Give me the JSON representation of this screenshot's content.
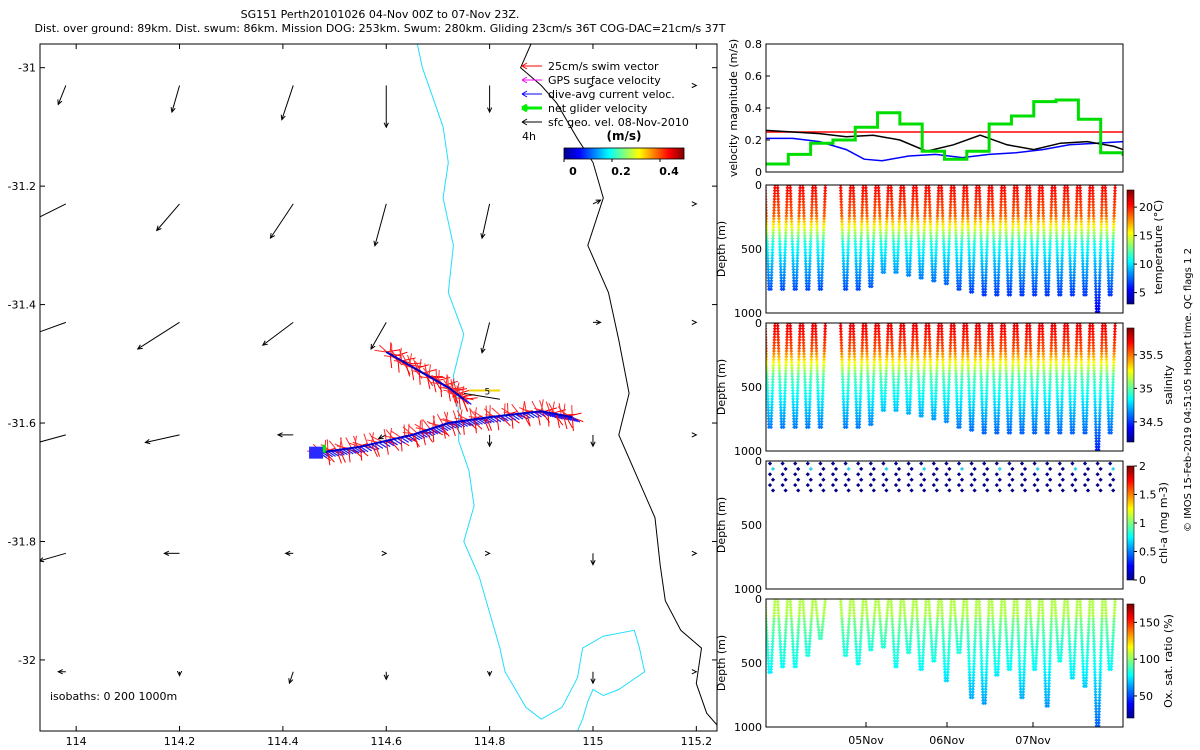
{
  "title": {
    "line1": "SG151 Perth20101026 04-Nov 00Z to 07-Nov 23Z.",
    "line2": "Dist. over ground: 89km. Dist. swum: 86km. Mission DOG: 253km. Swum: 280km. Gliding 23cm/s 36T COG-DAC=21cm/s 37T"
  },
  "chart_data": [
    {
      "type": "map",
      "name": "glider track map",
      "xlim": [
        113.93,
        115.24
      ],
      "ylim": [
        -32.12,
        -30.96
      ],
      "xticks": [
        114,
        114.2,
        114.4,
        114.6,
        114.8,
        115,
        115.2
      ],
      "xtick_labels": [
        "114",
        "114.2",
        "114.4",
        "114.6",
        "114.8",
        "115",
        "115.2"
      ],
      "yticks": [
        -31,
        -31.2,
        -31.4,
        -31.6,
        -31.8,
        -32
      ],
      "ytick_labels": [
        "-31",
        "-31.2",
        "-31.4",
        "-31.6",
        "-31.8",
        "-32"
      ],
      "legend": [
        {
          "label": "25cm/s swim vector",
          "color": "#ff0000"
        },
        {
          "label": "GPS surface velocity",
          "color": "#ff00ff"
        },
        {
          "label": "dive-avg current veloc.",
          "color": "#0000ff"
        },
        {
          "label": "net glider velocity",
          "color": "#00ee00"
        },
        {
          "label": "sfc geo. vel. 08-Nov-2010",
          "color": "#000000"
        }
      ],
      "legend_extra": "4h",
      "colorbar": {
        "label": "(m/s)",
        "tick_labels": [
          "0",
          "0.2",
          "0.4"
        ],
        "range": [
          0,
          0.5
        ]
      },
      "isobath_note": "isobaths: 0   200  1000m",
      "track_marker": "5",
      "track_west": {
        "lon": [
          114.47,
          114.55,
          114.65,
          114.72,
          114.8,
          114.9,
          114.96
        ],
        "lat": [
          -31.65,
          -31.64,
          -31.62,
          -31.6,
          -31.59,
          -31.58,
          -31.59
        ]
      },
      "track_north": {
        "lon": [
          114.6,
          114.66,
          114.72,
          114.75
        ],
        "lat": [
          -31.48,
          -31.51,
          -31.54,
          -31.56
        ]
      },
      "track_east": {
        "lon": [
          114.75,
          114.82
        ],
        "lat": [
          -31.55,
          -31.56
        ]
      },
      "coastline": {
        "lon": [
          114.88,
          114.86,
          114.9,
          114.93,
          114.97,
          115.0,
          115.02,
          114.99,
          115.03,
          115.05,
          115.07,
          115.05,
          115.09,
          115.12,
          115.13,
          115.14,
          115.17,
          115.21,
          115.2,
          115.22,
          115.25
        ],
        "lat": [
          -30.96,
          -31.0,
          -31.03,
          -31.06,
          -31.12,
          -31.16,
          -31.22,
          -31.3,
          -31.38,
          -31.46,
          -31.55,
          -31.62,
          -31.7,
          -31.76,
          -31.84,
          -31.9,
          -31.95,
          -31.98,
          -32.04,
          -32.09,
          -32.12
        ]
      },
      "isobath_200": {
        "lon": [
          114.66,
          114.67,
          114.69,
          114.71,
          114.72,
          114.71,
          114.73,
          114.72,
          114.75,
          114.73,
          114.74,
          114.74,
          114.76,
          114.77,
          114.75,
          114.78,
          114.8,
          114.82,
          114.83,
          114.85,
          114.87,
          114.9,
          114.94,
          114.97,
          114.98,
          115.02,
          115.08,
          115.09,
          115.1,
          115.05,
          115.02,
          115.0,
          114.99,
          114.98,
          114.97
        ],
        "lat": [
          -30.96,
          -31.0,
          -31.05,
          -31.1,
          -31.16,
          -31.22,
          -31.3,
          -31.38,
          -31.45,
          -31.52,
          -31.58,
          -31.63,
          -31.68,
          -31.74,
          -31.8,
          -31.86,
          -31.92,
          -31.98,
          -32.02,
          -32.05,
          -32.08,
          -32.1,
          -32.08,
          -32.03,
          -31.98,
          -31.96,
          -31.95,
          -31.98,
          -32.02,
          -32.05,
          -32.06,
          -32.05,
          -32.07,
          -32.1,
          -32.12
        ]
      },
      "current_grid": {
        "lon": [
          113.98,
          114.2,
          114.42,
          114.6,
          114.8,
          115.0,
          115.2
        ],
        "lat": [
          -31.03,
          -31.23,
          -31.43,
          -31.62,
          -31.82,
          -32.02
        ],
        "u": [
          [
            -0.02,
            -0.02,
            -0.03,
            0.0,
            0.0,
            0.0,
            0.0
          ],
          [
            -0.08,
            -0.06,
            -0.06,
            -0.03,
            -0.02,
            0.02,
            0.0
          ],
          [
            -0.11,
            -0.11,
            -0.08,
            -0.04,
            -0.02,
            0.02,
            0.0
          ],
          [
            -0.11,
            -0.09,
            -0.04,
            -0.02,
            0.0,
            0.0,
            0.0
          ],
          [
            -0.07,
            -0.04,
            -0.02,
            0.0,
            0.0,
            0.0,
            0.0
          ],
          [
            -0.02,
            0.0,
            -0.01,
            0.0,
            0.0,
            0.0,
            0.0
          ]
        ],
        "v": [
          [
            -0.05,
            -0.07,
            -0.09,
            -0.11,
            -0.07,
            0.0,
            0.0
          ],
          [
            -0.04,
            -0.07,
            -0.09,
            -0.11,
            -0.09,
            0.01,
            0.0
          ],
          [
            -0.04,
            -0.07,
            -0.06,
            -0.07,
            -0.08,
            0.0,
            0.0
          ],
          [
            -0.03,
            -0.02,
            0.0,
            -0.01,
            -0.03,
            -0.03,
            0.0
          ],
          [
            -0.02,
            0.0,
            0.0,
            0.0,
            0.0,
            -0.03,
            0.0
          ],
          [
            0.0,
            -0.01,
            -0.03,
            -0.02,
            -0.01,
            -0.03,
            0.0
          ]
        ]
      }
    },
    {
      "type": "line",
      "name": "velocity magnitude",
      "ylabel": "velocity magnitude (m/s)",
      "ylim": [
        0,
        0.8
      ],
      "yticks": [
        0,
        0.2,
        0.4,
        0.6,
        0.8
      ],
      "ytick_labels": [
        "0",
        "0.2",
        "0.4",
        "0.6",
        "0.8"
      ],
      "xlim": [
        0,
        4
      ],
      "series": [
        {
          "name": "swim vector",
          "color": "#ff0000",
          "x": [
            0,
            0.55,
            3.45,
            4
          ],
          "y": [
            0.25,
            0.25,
            0.25,
            0.25
          ]
        },
        {
          "name": "dive-avg current",
          "color": "#0000ff",
          "x": [
            0,
            0.3,
            0.6,
            0.9,
            1.1,
            1.3,
            1.6,
            1.9,
            2.2,
            2.5,
            2.8,
            3.1,
            3.4,
            3.7,
            4.0
          ],
          "y": [
            0.21,
            0.21,
            0.19,
            0.14,
            0.08,
            0.07,
            0.1,
            0.11,
            0.09,
            0.11,
            0.12,
            0.14,
            0.17,
            0.18,
            0.19
          ]
        },
        {
          "name": "sfc geo vel",
          "color": "#000000",
          "x": [
            0,
            0.3,
            0.6,
            0.9,
            1.2,
            1.5,
            1.8,
            2.1,
            2.4,
            2.7,
            3.0,
            3.3,
            3.6,
            3.9,
            4.0
          ],
          "y": [
            0.26,
            0.25,
            0.24,
            0.22,
            0.23,
            0.2,
            0.13,
            0.17,
            0.23,
            0.17,
            0.14,
            0.18,
            0.19,
            0.16,
            0.14
          ]
        },
        {
          "name": "net glider velocity",
          "color": "#00dd00",
          "x": [
            0,
            0.25,
            0.5,
            0.75,
            1.0,
            1.25,
            1.5,
            1.75,
            2.0,
            2.25,
            2.5,
            2.75,
            3.0,
            3.25,
            3.5,
            3.75,
            4.0
          ],
          "y": [
            0.05,
            0.11,
            0.18,
            0.2,
            0.28,
            0.37,
            0.3,
            0.13,
            0.08,
            0.13,
            0.3,
            0.35,
            0.44,
            0.45,
            0.33,
            0.12,
            0.1
          ]
        }
      ]
    },
    {
      "type": "scatter",
      "name": "temperature section",
      "ylabel": "Depth (m)",
      "ylim": [
        0,
        1000
      ],
      "ytick_labels": [
        "0",
        "500",
        "1000"
      ],
      "colorbar_label": "temperature (°C)",
      "colorbar_range": [
        3,
        23
      ],
      "colorbar_ticks": [
        5,
        10,
        15,
        20
      ],
      "colorbar_tick_labels": [
        "5",
        "10",
        "15",
        "20"
      ],
      "max_depth": [
        820,
        820,
        820,
        820,
        820,
        0,
        820,
        820,
        790,
        690,
        690,
        700,
        720,
        750,
        770,
        810,
        830,
        860,
        860,
        860,
        860,
        860,
        860,
        860,
        860,
        860,
        1000,
        860
      ]
    },
    {
      "type": "scatter",
      "name": "salinity section",
      "ylabel": "Depth (m)",
      "ylim": [
        0,
        1000
      ],
      "ytick_labels": [
        "0",
        "500",
        "1000"
      ],
      "colorbar_label": "salinity",
      "colorbar_range": [
        34.2,
        35.9
      ],
      "colorbar_ticks": [
        34.5,
        35,
        35.5
      ],
      "colorbar_tick_labels": [
        "34.5",
        "35",
        "35.5"
      ],
      "max_depth": [
        820,
        820,
        820,
        820,
        820,
        0,
        820,
        820,
        790,
        690,
        690,
        700,
        720,
        750,
        770,
        810,
        830,
        860,
        860,
        860,
        860,
        860,
        860,
        860,
        860,
        860,
        1000,
        860
      ]
    },
    {
      "type": "scatter",
      "name": "chlorophyll section",
      "ylabel": "Depth (m)",
      "ylim": [
        0,
        1000
      ],
      "ytick_labels": [
        "0",
        "500",
        "1000"
      ],
      "colorbar_label": "chl-a (mg m-3)",
      "colorbar_range": [
        0,
        2
      ],
      "colorbar_ticks": [
        0,
        0.5,
        1,
        1.5,
        2
      ],
      "colorbar_tick_labels": [
        "0",
        "0.5",
        "1",
        "1.5",
        "2"
      ],
      "max_depth": 250
    },
    {
      "type": "scatter",
      "name": "oxygen saturation section",
      "ylabel": "Depth (m)",
      "ylim": [
        0,
        1000
      ],
      "ytick_labels": [
        "0",
        "500",
        "1000"
      ],
      "colorbar_label": "Ox. sat. ratio (%)",
      "colorbar_range": [
        20,
        175
      ],
      "colorbar_ticks": [
        50,
        100,
        150
      ],
      "colorbar_tick_labels": [
        "50",
        "100",
        "150"
      ],
      "max_depth": [
        580,
        520,
        520,
        440,
        300,
        0,
        450,
        500,
        400,
        380,
        520,
        420,
        560,
        480,
        640,
        420,
        780,
        820,
        600,
        560,
        780,
        540,
        830,
        480,
        620,
        680,
        1000,
        560
      ],
      "xtick_labels": [
        "05Nov",
        "06Nov",
        "07Nov"
      ]
    }
  ],
  "side_note": "© IMOS 15-Feb-2019 04:51:05 Hobart time. QC flags 1  2"
}
